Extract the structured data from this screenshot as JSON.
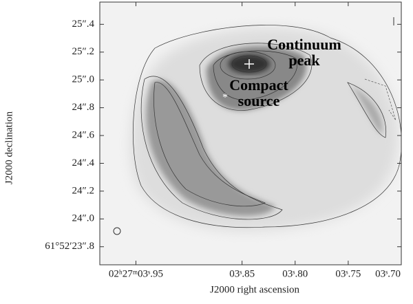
{
  "chart_data": {
    "type": "image",
    "xlabel": "J2000 right ascension",
    "ylabel": "J2000 declination",
    "xlim": [
      3.984,
      3.7
    ],
    "ylim": [
      23.67,
      25.56
    ],
    "xticks": [
      {
        "value": 3.95,
        "label": "02ʰ27ᵐ03ˢ.95"
      },
      {
        "value": 3.85,
        "label": "03ˢ.85"
      },
      {
        "value": 3.8,
        "label": "03ˢ.80"
      },
      {
        "value": 3.75,
        "label": "03ˢ.75"
      },
      {
        "value": 3.7,
        "label": "03ˢ.70"
      }
    ],
    "yticks": [
      {
        "value": 23.8,
        "label": "61°52′23″.8"
      },
      {
        "value": 24.0,
        "label": "24″.0"
      },
      {
        "value": 24.2,
        "label": "24″.2"
      },
      {
        "value": 24.4,
        "label": "24″.4"
      },
      {
        "value": 24.6,
        "label": "24″.6"
      },
      {
        "value": 24.8,
        "label": "24″.8"
      },
      {
        "value": 25.0,
        "label": "25″.0"
      },
      {
        "value": 25.2,
        "label": "25″.2"
      },
      {
        "value": 25.4,
        "label": "25″.4"
      }
    ],
    "annotations": [
      [
        "Continuum",
        "peak"
      ],
      [
        "Compact",
        "source"
      ]
    ]
  }
}
